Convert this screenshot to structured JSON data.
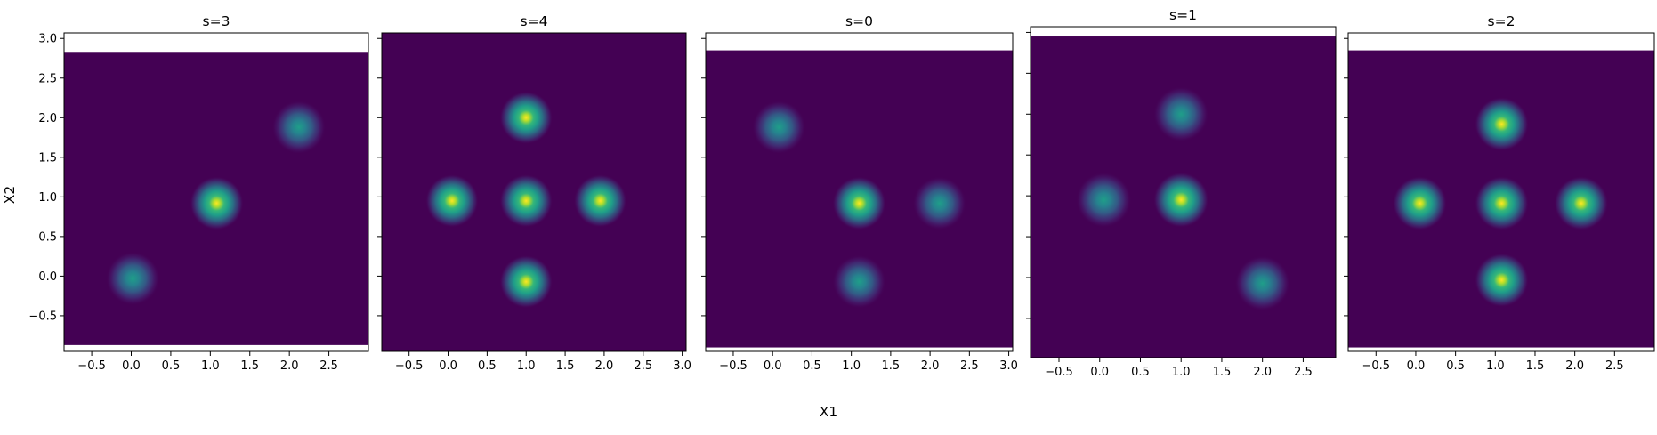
{
  "figure": {
    "xlabel": "X1",
    "ylabel": "X2",
    "colormap": [
      "#440154",
      "#482878",
      "#3e4989",
      "#31688e",
      "#26828e",
      "#1f9e89",
      "#35b779",
      "#6ece58",
      "#b5de2b",
      "#fde725"
    ]
  },
  "chart_data": [
    {
      "type": "heatmap",
      "title": "s=3",
      "xlim": [
        -0.85,
        3.0
      ],
      "ylim": [
        -0.95,
        3.07
      ],
      "data_extent": {
        "x": [
          -0.85,
          3.0
        ],
        "y": [
          -0.87,
          2.82
        ]
      },
      "xticks": [
        -0.5,
        0.0,
        0.5,
        1.0,
        1.5,
        2.0,
        2.5
      ],
      "yticks": [
        -0.5,
        0.0,
        0.5,
        1.0,
        1.5,
        2.0,
        2.5,
        3.0
      ],
      "show_yticklabels": true,
      "blobs": [
        {
          "x": 1.08,
          "y": 0.92,
          "intensity": 1.0
        },
        {
          "x": 0.02,
          "y": -0.03,
          "intensity": 0.45
        },
        {
          "x": 2.12,
          "y": 1.88,
          "intensity": 0.45
        }
      ]
    },
    {
      "type": "heatmap",
      "title": "s=4",
      "xlim": [
        -0.85,
        3.05
      ],
      "ylim": [
        -0.95,
        3.07
      ],
      "data_extent": {
        "x": [
          -0.85,
          3.05
        ],
        "y": [
          -0.95,
          3.07
        ]
      },
      "xticks": [
        -0.5,
        0.0,
        0.5,
        1.0,
        1.5,
        2.0,
        2.5,
        3.0
      ],
      "yticks": [
        -0.5,
        0.0,
        0.5,
        1.0,
        1.5,
        2.0,
        2.5,
        3.0
      ],
      "show_yticklabels": false,
      "blobs": [
        {
          "x": 1.0,
          "y": 2.0,
          "intensity": 1.0
        },
        {
          "x": 0.05,
          "y": 0.95,
          "intensity": 1.0
        },
        {
          "x": 1.0,
          "y": 0.95,
          "intensity": 1.0
        },
        {
          "x": 1.95,
          "y": 0.95,
          "intensity": 1.0
        },
        {
          "x": 1.0,
          "y": -0.07,
          "intensity": 1.0
        }
      ]
    },
    {
      "type": "heatmap",
      "title": "s=0",
      "xlim": [
        -0.85,
        3.05
      ],
      "ylim": [
        -0.95,
        3.07
      ],
      "data_extent": {
        "x": [
          -0.85,
          3.05
        ],
        "y": [
          -0.9,
          2.85
        ]
      },
      "xticks": [
        -0.5,
        0.0,
        0.5,
        1.0,
        1.5,
        2.0,
        2.5,
        3.0
      ],
      "yticks": [
        -0.5,
        0.0,
        0.5,
        1.0,
        1.5,
        2.0,
        2.5,
        3.0
      ],
      "show_yticklabels": false,
      "blobs": [
        {
          "x": 0.08,
          "y": 1.88,
          "intensity": 0.5
        },
        {
          "x": 1.1,
          "y": 0.92,
          "intensity": 1.0
        },
        {
          "x": 2.12,
          "y": 0.92,
          "intensity": 0.5
        },
        {
          "x": 1.1,
          "y": -0.07,
          "intensity": 0.5
        }
      ]
    },
    {
      "type": "heatmap",
      "title": "s=1",
      "xlim": [
        -0.85,
        2.9
      ],
      "ylim": [
        -0.98,
        3.07
      ],
      "data_extent": {
        "x": [
          -0.85,
          2.9
        ],
        "y": [
          -0.98,
          2.95
        ]
      },
      "xticks": [
        -0.5,
        0.0,
        0.5,
        1.0,
        1.5,
        2.0,
        2.5
      ],
      "yticks": [
        -0.5,
        0.0,
        0.5,
        1.0,
        1.5,
        2.0,
        2.5,
        3.0
      ],
      "show_yticklabels": false,
      "blobs": [
        {
          "x": 1.0,
          "y": 2.0,
          "intensity": 0.55
        },
        {
          "x": 0.05,
          "y": 0.95,
          "intensity": 0.55
        },
        {
          "x": 1.0,
          "y": 0.95,
          "intensity": 1.0
        },
        {
          "x": 2.0,
          "y": -0.07,
          "intensity": 0.55
        }
      ]
    },
    {
      "type": "heatmap",
      "title": "s=2",
      "xlim": [
        -0.85,
        3.0
      ],
      "ylim": [
        -0.95,
        3.07
      ],
      "data_extent": {
        "x": [
          -0.85,
          3.0
        ],
        "y": [
          -0.9,
          2.85
        ]
      },
      "xticks": [
        -0.5,
        0.0,
        0.5,
        1.0,
        1.5,
        2.0,
        2.5
      ],
      "yticks": [
        -0.5,
        0.0,
        0.5,
        1.0,
        1.5,
        2.0,
        2.5,
        3.0
      ],
      "show_yticklabels": false,
      "blobs": [
        {
          "x": 1.08,
          "y": 1.92,
          "intensity": 1.0
        },
        {
          "x": 0.05,
          "y": 0.92,
          "intensity": 1.0
        },
        {
          "x": 1.08,
          "y": 0.92,
          "intensity": 1.0
        },
        {
          "x": 2.08,
          "y": 0.92,
          "intensity": 1.0
        },
        {
          "x": 1.08,
          "y": -0.05,
          "intensity": 1.0
        }
      ]
    }
  ]
}
